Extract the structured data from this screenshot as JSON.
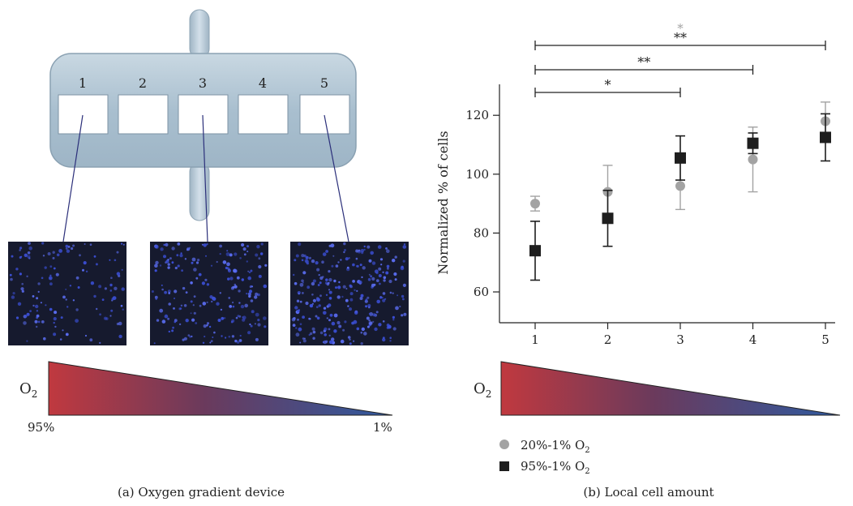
{
  "panel_a": {
    "caption": "(a) Oxygen gradient device",
    "wells": [
      "1",
      "2",
      "3",
      "4",
      "5"
    ],
    "gradient": {
      "label": "O",
      "label_sub": "2",
      "left_label": "95%",
      "right_label": "1%",
      "colors": [
        "#c0393f",
        "#6b3a5c",
        "#2f5aa0"
      ]
    },
    "micrographs": [
      {
        "well": "1",
        "density": 0.35
      },
      {
        "well": "3",
        "density": 0.7
      },
      {
        "well": "5",
        "density": 1.0
      }
    ]
  },
  "panel_b": {
    "caption": "(b) Local cell amount",
    "gradient": {
      "label": "O",
      "label_sub": "2"
    },
    "legend": [
      {
        "marker": "circle",
        "text": "20%-1% O",
        "sub": "2",
        "color": "#a3a3a3"
      },
      {
        "marker": "square",
        "text": "95%-1% O",
        "sub": "2",
        "color": "#1e1e1e"
      }
    ],
    "significance": [
      {
        "from": "1",
        "to": "3",
        "stars": "*",
        "color": "#222222"
      },
      {
        "from": "1",
        "to": "4",
        "stars": "**",
        "color": "#222222"
      },
      {
        "from": "1",
        "to": "5",
        "stars": "**",
        "color": "#222222",
        "extra_stars": "*",
        "extra_color": "#a3a3a3"
      }
    ]
  },
  "chart_data": {
    "type": "scatter",
    "categories": [
      "1",
      "2",
      "3",
      "4",
      "5"
    ],
    "ylabel": "Normalized % of cells",
    "xlabel": "",
    "ylim": [
      50,
      130
    ],
    "yticks": [
      60,
      80,
      100,
      120
    ],
    "series": [
      {
        "name": "20%-1% O2",
        "color": "#a3a3a3",
        "marker": "circle",
        "values": [
          90,
          94,
          96,
          105,
          118
        ],
        "errors": [
          2.5,
          9,
          8,
          11,
          6.5
        ]
      },
      {
        "name": "95%-1% O2",
        "color": "#1e1e1e",
        "marker": "square",
        "values": [
          74,
          85,
          105.5,
          110.5,
          112.5
        ],
        "errors": [
          10,
          9.5,
          7.5,
          3.5,
          8
        ]
      }
    ]
  }
}
